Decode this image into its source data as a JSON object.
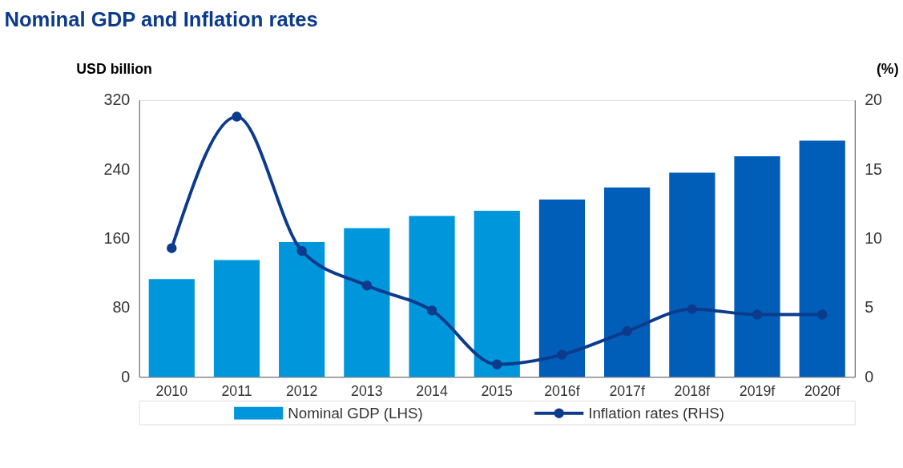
{
  "chart_data": {
    "type": "bar",
    "title": "Nominal GDP and Inflation rates",
    "ylabel": "USD billion",
    "y2label": "(%)",
    "categories": [
      "2010",
      "2011",
      "2012",
      "2013",
      "2014",
      "2015",
      "2016f",
      "2017f",
      "2018f",
      "2019f",
      "2020f"
    ],
    "series": [
      {
        "name": "Nominal GDP (LHS)",
        "color": "#0096dc",
        "colors": [
          "#0096dc",
          "#0096dc",
          "#0096dc",
          "#0096dc",
          "#0096dc",
          "#0096dc",
          "#005eb8",
          "#005eb8",
          "#005eb8",
          "#005eb8",
          "#005eb8"
        ],
        "values": [
          113,
          135,
          156,
          172,
          186,
          192,
          205,
          219,
          236,
          255,
          273
        ]
      },
      {
        "name": "Inflation rates (RHS)",
        "type": "line",
        "axis": "y2",
        "color": "#0c3b8c",
        "marker": "circle",
        "values": [
          9.3,
          18.8,
          9.1,
          6.6,
          4.8,
          0.9,
          1.6,
          3.3,
          4.9,
          4.5,
          4.5
        ]
      }
    ],
    "ylim": [
      0,
      320
    ],
    "yticks": [
      0,
      80,
      160,
      240,
      320
    ],
    "y2lim": [
      0,
      20
    ],
    "y2ticks": [
      0,
      5,
      10,
      15,
      20
    ],
    "grid": false,
    "legend": "bottom"
  }
}
